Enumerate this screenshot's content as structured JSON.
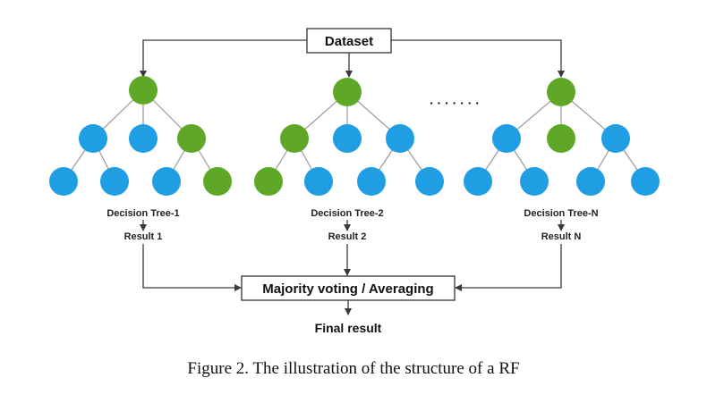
{
  "diagram": {
    "top_box": "Dataset",
    "bottom_box": "Majority voting / Averaging",
    "final_label": "Final result",
    "ellipsis": "· · · · · · ·",
    "trees": [
      {
        "name": "Decision Tree-1",
        "result": "Result 1",
        "root": "green",
        "level1": [
          "blue",
          "blue",
          "green"
        ],
        "level2": [
          "blue",
          "blue",
          "blue",
          "green"
        ]
      },
      {
        "name": "Decision Tree-2",
        "result": "Result 2",
        "root": "green",
        "level1": [
          "green",
          "blue",
          "blue"
        ],
        "level2": [
          "green",
          "blue",
          "blue",
          "blue"
        ]
      },
      {
        "name": "Decision Tree-N",
        "result": "Result N",
        "root": "green",
        "level1": [
          "blue",
          "green",
          "blue"
        ],
        "level2": [
          "blue",
          "blue",
          "blue",
          "blue"
        ]
      }
    ]
  },
  "caption": "Figure 2. The illustration of the structure of a RF",
  "colors": {
    "green": "#5fa827",
    "blue": "#1f9ee3",
    "box_border": "#333333",
    "edge": "#9a9a9a"
  }
}
